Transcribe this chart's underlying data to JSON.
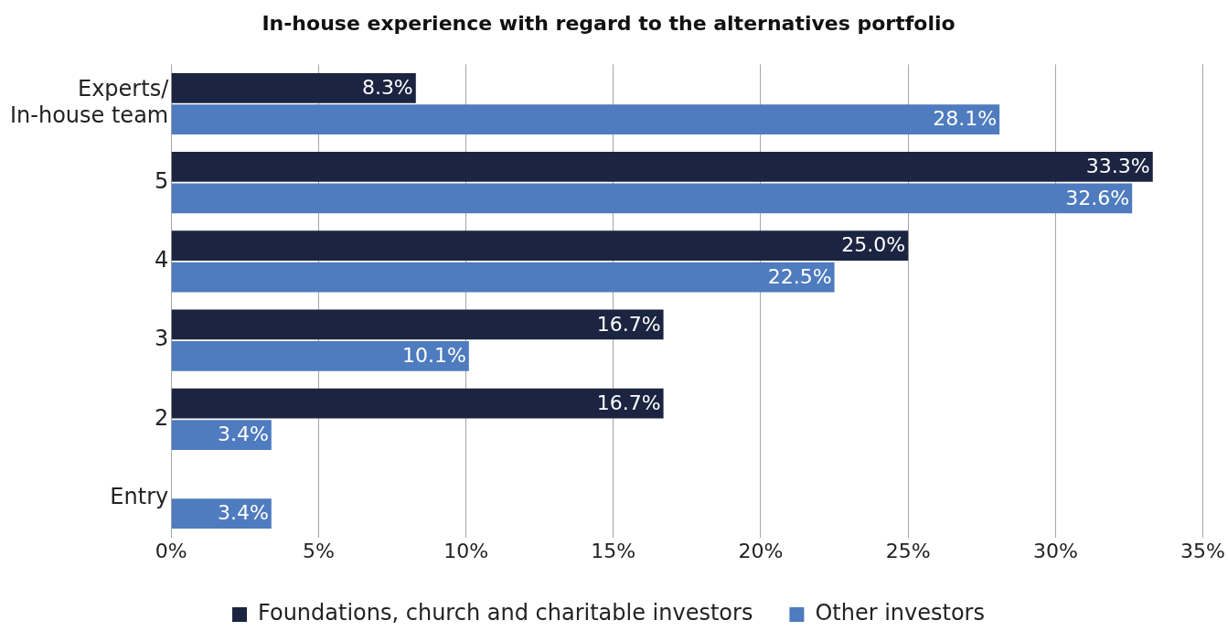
{
  "chart_data": {
    "type": "bar",
    "orientation": "horizontal",
    "title": "In-house experience with regard to the alternatives portfolio",
    "categories": [
      "Experts/\nIn-house team",
      "5",
      "4",
      "3",
      "2",
      "Entry"
    ],
    "series": [
      {
        "name": "Foundations, church and charitable investors",
        "color": "#1b2440",
        "values": [
          8.3,
          33.3,
          25.0,
          16.7,
          16.7,
          null
        ],
        "value_labels": [
          "8.3%",
          "33.3%",
          "25.0%",
          "16.7%",
          "16.7%",
          null
        ]
      },
      {
        "name": "Other investors",
        "color": "#4f7bbf",
        "values": [
          28.1,
          32.6,
          22.5,
          10.1,
          3.4,
          3.4
        ],
        "value_labels": [
          "28.1%",
          "32.6%",
          "22.5%",
          "10.1%",
          "3.4%",
          "3.4%"
        ]
      }
    ],
    "xlim": [
      0,
      35
    ],
    "xticks": [
      {
        "value": 0,
        "label": "0%"
      },
      {
        "value": 5,
        "label": "5%"
      },
      {
        "value": 10,
        "label": "10%"
      },
      {
        "value": 15,
        "label": "15%"
      },
      {
        "value": 20,
        "label": "20%"
      },
      {
        "value": 25,
        "label": "25%"
      },
      {
        "value": 30,
        "label": "30%"
      },
      {
        "value": 35,
        "label": "35%"
      }
    ],
    "grid": "x",
    "legend": "bottom"
  }
}
